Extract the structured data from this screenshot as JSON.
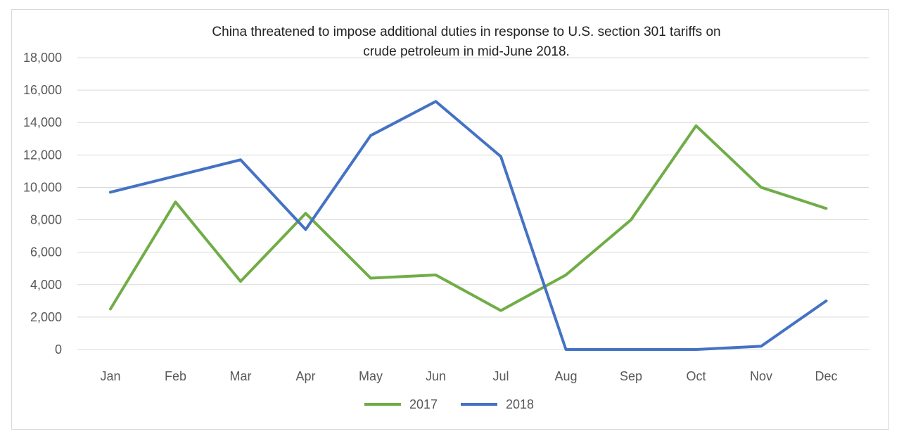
{
  "chart_data": {
    "type": "line",
    "title_lines": [
      "China threatened to  impose additional duties in response to U.S.  section 301 tariffs on",
      "crude petroleum  in mid-June 2018."
    ],
    "categories": [
      "Jan",
      "Feb",
      "Mar",
      "Apr",
      "May",
      "Jun",
      "Jul",
      "Aug",
      "Sep",
      "Oct",
      "Nov",
      "Dec"
    ],
    "series": [
      {
        "name": "2017",
        "color": "#70ad47",
        "values": [
          2500,
          9100,
          4200,
          8400,
          4400,
          4600,
          2400,
          4600,
          8000,
          13800,
          10000,
          8700
        ]
      },
      {
        "name": "2018",
        "color": "#4472c4",
        "values": [
          9700,
          10700,
          11700,
          7400,
          13200,
          15300,
          11900,
          0,
          0,
          0,
          200,
          3000
        ]
      }
    ],
    "y_ticks": [
      "0",
      "2,000",
      "4,000",
      "6,000",
      "8,000",
      "10,000",
      "12,000",
      "14,000",
      "16,000",
      "18,000"
    ],
    "ylim": [
      0,
      18000
    ],
    "xlabel": "",
    "ylabel": "",
    "grid": true,
    "grid_color": "#d9d9d9",
    "legend_position": "bottom"
  }
}
